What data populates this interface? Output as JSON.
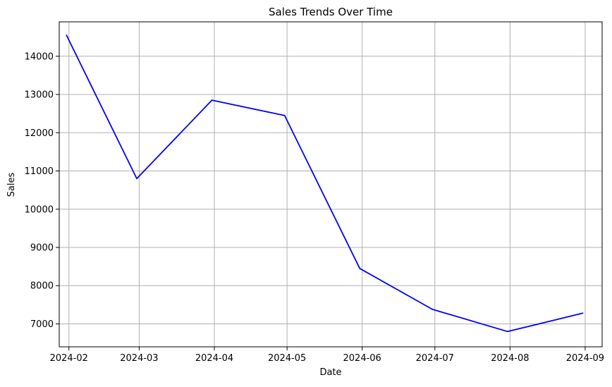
{
  "chart_data": {
    "type": "line",
    "title": "Sales Trends Over Time",
    "xlabel": "Date",
    "ylabel": "Sales",
    "grid": true,
    "x_ticks": [
      "2024-02",
      "2024-03",
      "2024-04",
      "2024-05",
      "2024-06",
      "2024-07",
      "2024-08",
      "2024-09"
    ],
    "y_ticks": [
      7000,
      8000,
      9000,
      10000,
      11000,
      12000,
      13000,
      14000
    ],
    "ylim": [
      6400,
      14900
    ],
    "xlim": [
      "2024-01-28",
      "2024-09-08"
    ],
    "series": [
      {
        "color": "#0000ff",
        "x": [
          "2024-01-31",
          "2024-02-29",
          "2024-03-31",
          "2024-04-30",
          "2024-05-31",
          "2024-06-30",
          "2024-07-31",
          "2024-08-31"
        ],
        "y": [
          14550,
          10800,
          12850,
          12450,
          8450,
          7380,
          6800,
          7280
        ]
      }
    ]
  }
}
